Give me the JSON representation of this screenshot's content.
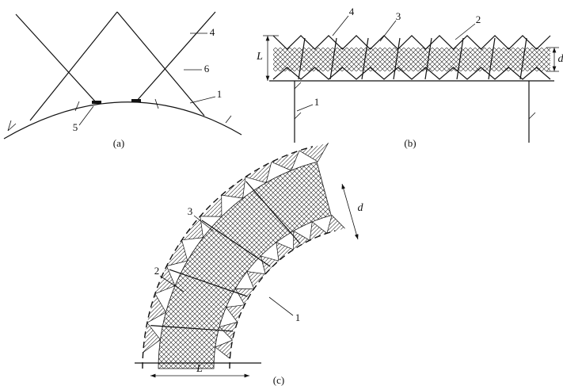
{
  "panels": [
    {
      "label": "(a)",
      "callouts": [
        "4",
        "6",
        "1",
        "5"
      ]
    },
    {
      "label": "(b)",
      "callouts": [
        "4",
        "3",
        "2",
        "1"
      ],
      "dimensions": [
        "L",
        "d"
      ]
    },
    {
      "label": "(c)",
      "callouts": [
        "3",
        "2",
        "1"
      ],
      "dimensions": [
        "d",
        "L"
      ]
    }
  ]
}
